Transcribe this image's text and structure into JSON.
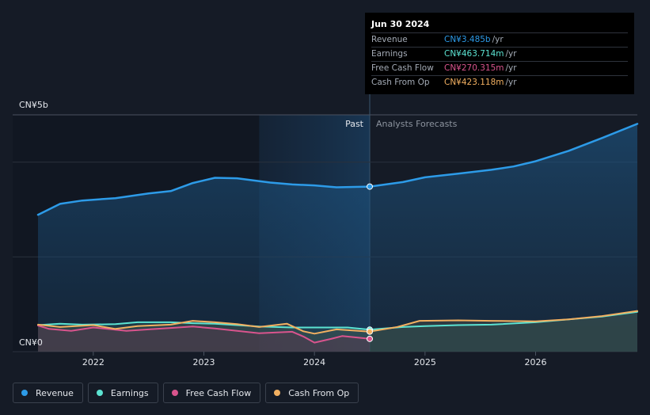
{
  "chart_data": {
    "type": "area",
    "y_top_label": "CN¥5b",
    "y_bottom_label": "CN¥0",
    "ylim": [
      0,
      5000
    ],
    "xlim": [
      2021.5,
      2026.92
    ],
    "x_ticks": [
      {
        "value": 2022,
        "label": "2022"
      },
      {
        "value": 2023,
        "label": "2023"
      },
      {
        "value": 2024,
        "label": "2024"
      },
      {
        "value": 2025,
        "label": "2025"
      },
      {
        "value": 2026,
        "label": "2026"
      }
    ],
    "past_label": "Past",
    "forecast_label": "Analysts Forecasts",
    "divider_x": 2024.5,
    "highlight_start_x": 2023.5,
    "series": [
      {
        "name": "Revenue",
        "color": "#2d9be8",
        "unit": "CN¥b",
        "points": [
          [
            2021.5,
            2890
          ],
          [
            2021.7,
            3120
          ],
          [
            2021.9,
            3190
          ],
          [
            2022.2,
            3240
          ],
          [
            2022.5,
            3340
          ],
          [
            2022.7,
            3390
          ],
          [
            2022.9,
            3560
          ],
          [
            2023.1,
            3670
          ],
          [
            2023.3,
            3660
          ],
          [
            2023.6,
            3570
          ],
          [
            2023.8,
            3530
          ],
          [
            2024.0,
            3510
          ],
          [
            2024.2,
            3470
          ],
          [
            2024.5,
            3485
          ],
          [
            2024.8,
            3580
          ],
          [
            2025.0,
            3680
          ],
          [
            2025.3,
            3760
          ],
          [
            2025.6,
            3840
          ],
          [
            2025.8,
            3910
          ],
          [
            2026.0,
            4020
          ],
          [
            2026.3,
            4240
          ],
          [
            2026.6,
            4510
          ],
          [
            2026.92,
            4810
          ]
        ]
      },
      {
        "name": "Earnings",
        "color": "#5ce3d2",
        "unit": "CN¥m",
        "points": [
          [
            2021.5,
            560
          ],
          [
            2021.7,
            590
          ],
          [
            2021.9,
            570
          ],
          [
            2022.2,
            580
          ],
          [
            2022.4,
            620
          ],
          [
            2022.7,
            620
          ],
          [
            2022.9,
            600
          ],
          [
            2023.1,
            590
          ],
          [
            2023.3,
            560
          ],
          [
            2023.5,
            530
          ],
          [
            2023.8,
            510
          ],
          [
            2024.0,
            510
          ],
          [
            2024.3,
            510
          ],
          [
            2024.5,
            463.714
          ],
          [
            2024.8,
            520
          ],
          [
            2025.0,
            540
          ],
          [
            2025.3,
            560
          ],
          [
            2025.6,
            570
          ],
          [
            2026.0,
            620
          ],
          [
            2026.3,
            680
          ],
          [
            2026.6,
            740
          ],
          [
            2026.92,
            840
          ]
        ]
      },
      {
        "name": "Free Cash Flow",
        "color": "#d9548d",
        "unit": "CN¥m",
        "points": [
          [
            2021.5,
            550
          ],
          [
            2021.6,
            480
          ],
          [
            2021.8,
            440
          ],
          [
            2022.0,
            510
          ],
          [
            2022.3,
            440
          ],
          [
            2022.5,
            470
          ],
          [
            2022.7,
            500
          ],
          [
            2022.9,
            530
          ],
          [
            2023.1,
            490
          ],
          [
            2023.3,
            440
          ],
          [
            2023.5,
            390
          ],
          [
            2023.8,
            420
          ],
          [
            2023.9,
            320
          ],
          [
            2024.0,
            190
          ],
          [
            2024.15,
            270
          ],
          [
            2024.25,
            330
          ],
          [
            2024.5,
            270.315
          ]
        ]
      },
      {
        "name": "Cash From Op",
        "color": "#f2b061",
        "unit": "CN¥m",
        "points": [
          [
            2021.5,
            570
          ],
          [
            2021.7,
            520
          ],
          [
            2022.0,
            560
          ],
          [
            2022.2,
            480
          ],
          [
            2022.4,
            540
          ],
          [
            2022.7,
            570
          ],
          [
            2022.9,
            650
          ],
          [
            2023.1,
            620
          ],
          [
            2023.3,
            580
          ],
          [
            2023.5,
            520
          ],
          [
            2023.75,
            590
          ],
          [
            2023.9,
            430
          ],
          [
            2024.0,
            380
          ],
          [
            2024.2,
            470
          ],
          [
            2024.5,
            423.118
          ],
          [
            2024.75,
            520
          ],
          [
            2024.95,
            650
          ],
          [
            2025.3,
            660
          ],
          [
            2025.6,
            650
          ],
          [
            2026.0,
            640
          ],
          [
            2026.3,
            680
          ],
          [
            2026.6,
            750
          ],
          [
            2026.92,
            860
          ]
        ]
      }
    ]
  },
  "tooltip": {
    "date": "Jun 30 2024",
    "rows": [
      {
        "label": "Revenue",
        "value": "CN¥3.485b",
        "unit": "/yr",
        "color": "#2d9be8"
      },
      {
        "label": "Earnings",
        "value": "CN¥463.714m",
        "unit": "/yr",
        "color": "#5ce3d2"
      },
      {
        "label": "Free Cash Flow",
        "value": "CN¥270.315m",
        "unit": "/yr",
        "color": "#d9548d"
      },
      {
        "label": "Cash From Op",
        "value": "CN¥423.118m",
        "unit": "/yr",
        "color": "#f2b061"
      }
    ]
  },
  "legend": [
    {
      "label": "Revenue",
      "color": "#2d9be8"
    },
    {
      "label": "Earnings",
      "color": "#5ce3d2"
    },
    {
      "label": "Free Cash Flow",
      "color": "#d9548d"
    },
    {
      "label": "Cash From Op",
      "color": "#f2b061"
    }
  ]
}
